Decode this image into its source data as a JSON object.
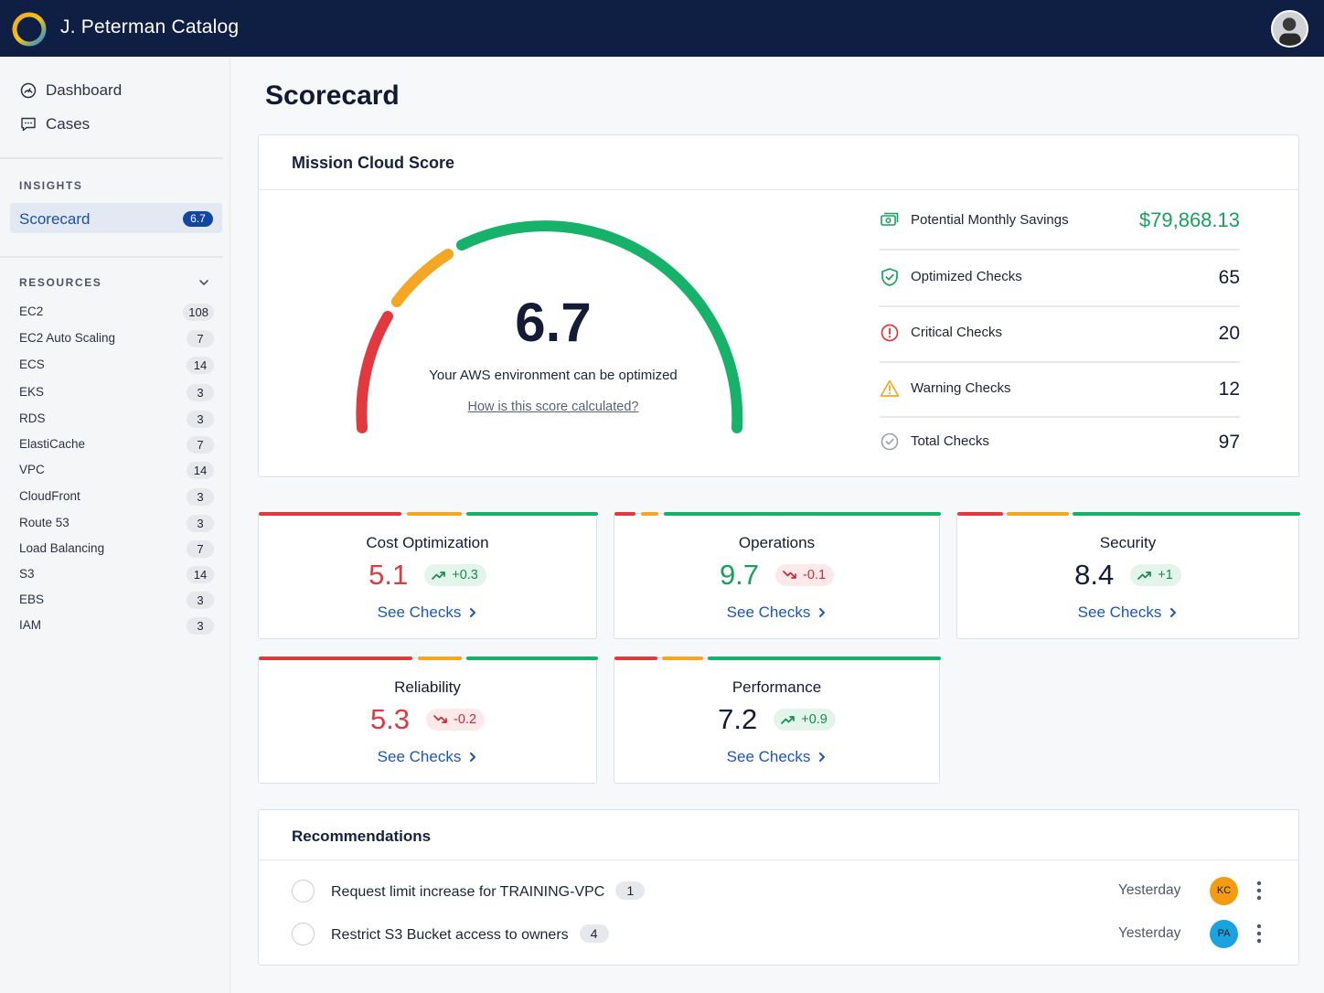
{
  "app": {
    "title": "J. Peterman Catalog"
  },
  "sidebar": {
    "nav": [
      {
        "label": "Dashboard",
        "icon": "dashboard-icon"
      },
      {
        "label": "Cases",
        "icon": "cases-icon"
      }
    ],
    "insights_heading": "INSIGHTS",
    "scorecard": {
      "label": "Scorecard",
      "badge": "6.7"
    },
    "resources_heading": "RESOURCES",
    "resources": [
      {
        "name": "EC2",
        "count": "108"
      },
      {
        "name": "EC2 Auto Scaling",
        "count": "7"
      },
      {
        "name": "ECS",
        "count": "14"
      },
      {
        "name": "EKS",
        "count": "3"
      },
      {
        "name": "RDS",
        "count": "3"
      },
      {
        "name": "ElastiCache",
        "count": "7"
      },
      {
        "name": "VPC",
        "count": "14"
      },
      {
        "name": "CloudFront",
        "count": "3"
      },
      {
        "name": "Route 53",
        "count": "3"
      },
      {
        "name": "Load Balancing",
        "count": "7"
      },
      {
        "name": "S3",
        "count": "14"
      },
      {
        "name": "EBS",
        "count": "3"
      },
      {
        "name": "IAM",
        "count": "3"
      }
    ]
  },
  "page": {
    "title": "Scorecard"
  },
  "mission": {
    "title": "Mission Cloud Score",
    "score": "6.7",
    "score_value": 6.7,
    "message": "Your AWS environment can be optimized",
    "link": "How is this score calculated?",
    "stats": [
      {
        "label": "Potential Monthly Savings",
        "value": "$79,868.13",
        "icon": "savings-icon"
      },
      {
        "label": "Optimized Checks",
        "value": "65",
        "icon": "shield-check-icon"
      },
      {
        "label": "Critical Checks",
        "value": "20",
        "icon": "critical-icon"
      },
      {
        "label": "Warning Checks",
        "value": "12",
        "icon": "warning-icon"
      },
      {
        "label": "Total Checks",
        "value": "97",
        "icon": "check-circle-icon"
      }
    ],
    "colors": {
      "red": "#e2383f",
      "orange": "#f5a623",
      "green": "#17b26a"
    }
  },
  "categories": [
    {
      "title": "Cost Optimization",
      "score": "5.1",
      "delta": "+0.3",
      "trend": "up",
      "link": "See Checks"
    },
    {
      "title": "Operations",
      "score": "9.7",
      "delta": "-0.1",
      "trend": "down",
      "link": "See Checks"
    },
    {
      "title": "Security",
      "score": "8.4",
      "delta": "+1",
      "trend": "up",
      "link": "See Checks"
    },
    {
      "title": "Reliability",
      "score": "5.3",
      "delta": "-0.2",
      "trend": "down",
      "link": "See Checks"
    },
    {
      "title": "Performance",
      "score": "7.2",
      "delta": "+0.9",
      "trend": "up",
      "link": "See Checks"
    }
  ],
  "recommendations": {
    "title": "Recommendations",
    "items": [
      {
        "text": "Request limit increase for TRAINING-VPC",
        "count": "1",
        "date": "Yesterday",
        "assignee": "KC",
        "assignee_color": "#f39c12"
      },
      {
        "text": "Restrict S3 Bucket access to owners",
        "count": "4",
        "date": "Yesterday",
        "assignee": "PA",
        "assignee_color": "#1aa3e0"
      }
    ]
  }
}
